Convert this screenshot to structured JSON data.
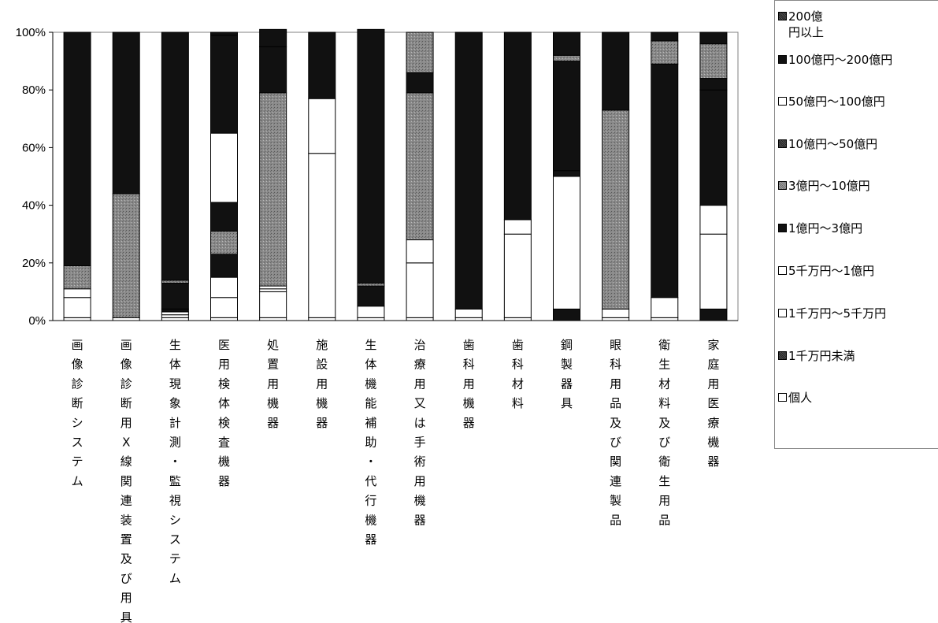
{
  "chart_data": {
    "type": "bar",
    "stacked": "percent",
    "ylim": [
      0,
      100
    ],
    "yticks": [
      "0%",
      "20%",
      "40%",
      "60%",
      "80%",
      "100%"
    ],
    "grid": false,
    "legend_position": "right",
    "categories": [
      "画像診断システム",
      "画像診断用X線関連装置及び用具",
      "生体現象計測・監視システム",
      "医用検体検査機器",
      "処置用機器",
      "施設用機器",
      "生体機能補助・代行機器",
      "治療用又は手術用機器",
      "歯科用機器",
      "歯科材料",
      "鋼製器具",
      "眼科用品及び関連製品",
      "衛生材料及び衛生用品",
      "家庭用医療機器"
    ],
    "series": [
      {
        "name": "個人",
        "color": "#ffffff",
        "values": [
          1,
          1,
          1,
          1,
          1,
          1,
          1,
          1,
          1,
          1,
          0,
          1,
          1,
          0
        ]
      },
      {
        "name": "1千万円未満",
        "color": "#111111",
        "values": [
          0,
          0,
          0,
          0,
          0,
          0,
          0,
          0,
          0,
          0,
          4,
          0,
          0,
          4
        ]
      },
      {
        "name": "1千万円～5千万円",
        "color": "#ffffff",
        "values": [
          7,
          0,
          1,
          7,
          9,
          57,
          4,
          19,
          3,
          29,
          46,
          3,
          7,
          26
        ]
      },
      {
        "name": "5千万円～1億円",
        "color": "#ffffff",
        "values": [
          3,
          0,
          1,
          0,
          1,
          0,
          0,
          0,
          0,
          0,
          0,
          0,
          0,
          0
        ]
      },
      {
        "name": "1億円～3億円",
        "color": "#111111",
        "values": [
          0,
          0,
          1,
          0,
          0,
          0,
          0,
          0,
          0,
          0,
          2,
          0,
          0,
          0
        ]
      },
      {
        "name": "5千万円～1億円",
        "color": "#ffffff",
        "values": [
          0,
          0,
          0,
          7,
          1,
          0,
          0,
          8,
          0,
          5,
          0,
          0,
          0,
          10
        ]
      },
      {
        "name": "10億円～50億円",
        "color": "#111111",
        "values": [
          0,
          0,
          9,
          8,
          0,
          0,
          7,
          0,
          0,
          0,
          0,
          0,
          0,
          0
        ]
      },
      {
        "name": "3億円～10億円",
        "color": "#7a7a7a",
        "values": [
          8,
          43,
          1,
          8,
          67,
          0,
          1,
          51,
          0,
          0,
          0,
          69,
          0,
          0
        ]
      },
      {
        "name": "1億円～3億円",
        "color": "#111111",
        "values": [
          0,
          0,
          0,
          10,
          0,
          0,
          0,
          0,
          0,
          0,
          0,
          0,
          0,
          40
        ]
      },
      {
        "name": "50億円～100億円",
        "color": "#ffffff",
        "values": [
          0,
          0,
          0,
          24,
          0,
          19,
          0,
          0,
          0,
          0,
          0,
          0,
          0,
          0
        ]
      },
      {
        "name": "100億円～200億円",
        "color": "#111111",
        "values": [
          81,
          56,
          86,
          34,
          16,
          23,
          88,
          7,
          96,
          65,
          38,
          27,
          81,
          4
        ]
      },
      {
        "name": "3億円～10億円",
        "color": "#7a7a7a",
        "values": [
          0,
          0,
          0,
          0,
          0,
          0,
          0,
          14,
          0,
          0,
          2,
          0,
          8,
          12
        ]
      },
      {
        "name": "200億円以上",
        "color": "#111111",
        "values": [
          0,
          0,
          0,
          1,
          6,
          0,
          0,
          0,
          0,
          0,
          8,
          0,
          3,
          4
        ]
      }
    ]
  },
  "legend": [
    {
      "label": "200億\n円以上",
      "swatch": "dark-pattern"
    },
    {
      "label": "100億円～200億円",
      "swatch": "black"
    },
    {
      "label": "50億円～100億円",
      "swatch": "white"
    },
    {
      "label": "10億円～50億円",
      "swatch": "dark-pattern"
    },
    {
      "label": "3億円～10億円",
      "swatch": "gray-pattern"
    },
    {
      "label": "1億円～3億円",
      "swatch": "black"
    },
    {
      "label": "5千万円～1億円",
      "swatch": "white"
    },
    {
      "label": "1千万円～5千万円",
      "swatch": "white"
    },
    {
      "label": "1千万円未満",
      "swatch": "dark-pattern"
    },
    {
      "label": "個人",
      "swatch": "white"
    }
  ],
  "legend_colors": {
    "dark-pattern": "#333333",
    "black": "#111111",
    "white": "#ffffff",
    "gray-pattern": "#8a8a8a"
  }
}
